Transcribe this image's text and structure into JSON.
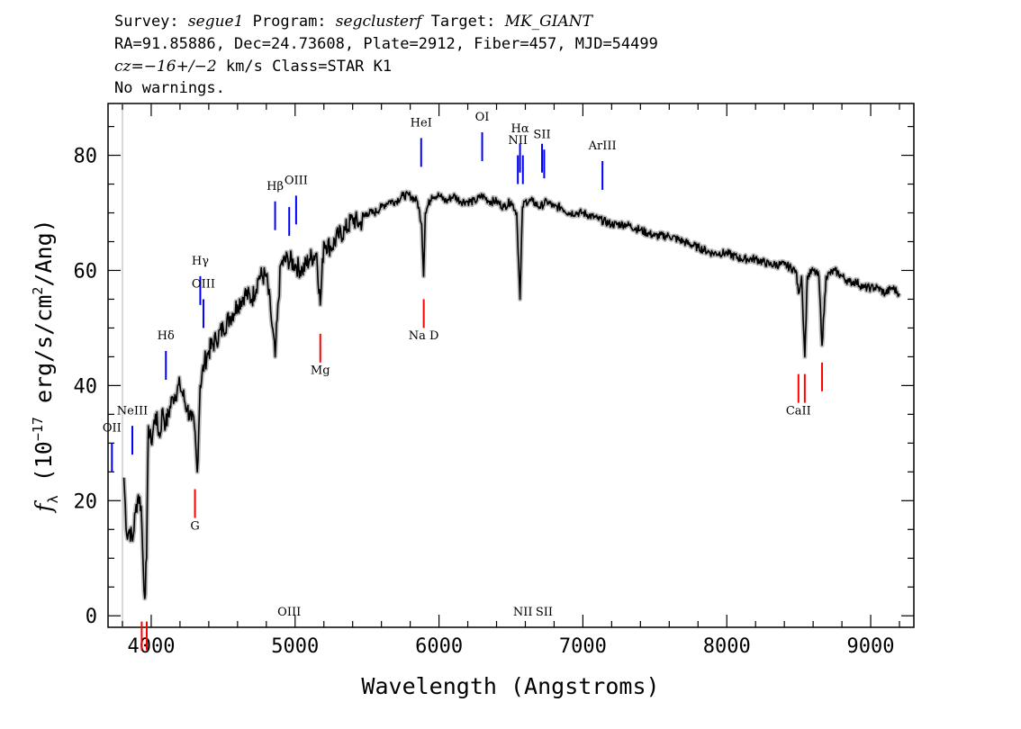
{
  "header": {
    "survey_label": "Survey:",
    "survey": "segue1",
    "program_label": "Program:",
    "program": "segclusterf",
    "target_label": "Target:",
    "target": "MK_GIANT",
    "line2": "RA=91.85886, Dec=24.73608, Plate=2912, Fiber=457, MJD=54499",
    "cz_label": "cz=",
    "cz_value": "−16+/−2",
    "cz_rest": " km/s Class=STAR K1",
    "line4": "No warnings."
  },
  "colors": {
    "emission": "#0000ff",
    "absorption": "#ff0000",
    "spectrum": "#000000",
    "error": "#bbbbbb"
  },
  "chart_data": {
    "type": "line",
    "xlabel": "Wavelength (Angstroms)",
    "ylabel_prefix": "f",
    "ylabel_sub": "λ",
    "ylabel_mid": " (10",
    "ylabel_exp1": "−17",
    "ylabel_mid2": " erg/s/cm",
    "ylabel_exp2": "2",
    "ylabel_end": "/Ang)",
    "xlim": [
      3700,
      9300
    ],
    "ylim": [
      -2,
      89
    ],
    "xticks": [
      4000,
      5000,
      6000,
      7000,
      8000,
      9000
    ],
    "yticks": [
      0,
      20,
      40,
      60,
      80
    ],
    "x_tick_labels": [
      "4000",
      "5000",
      "6000",
      "7000",
      "8000",
      "9000"
    ],
    "y_tick_labels": [
      "0",
      "20",
      "40",
      "60",
      "80"
    ],
    "series": [
      {
        "x": [
          3810,
          3830,
          3850,
          3870,
          3890,
          3910,
          3930,
          3945,
          3955,
          3968,
          3980,
          4000,
          4030,
          4060,
          4080,
          4100,
          4150,
          4200,
          4250,
          4280,
          4300,
          4320,
          4340,
          4370,
          4400,
          4450,
          4500,
          4550,
          4600,
          4650,
          4700,
          4750,
          4800,
          4830,
          4861,
          4900,
          4950,
          5000,
          5050,
          5100,
          5150,
          5175,
          5200,
          5250,
          5300,
          5350,
          5400,
          5450,
          5500,
          5550,
          5600,
          5650,
          5700,
          5750,
          5800,
          5850,
          5880,
          5893,
          5905,
          5950,
          6000,
          6050,
          6100,
          6150,
          6200,
          6250,
          6300,
          6350,
          6400,
          6450,
          6500,
          6540,
          6563,
          6580,
          6600,
          6650,
          6700,
          6750,
          6800,
          6850,
          6900,
          6950,
          7000,
          7100,
          7200,
          7300,
          7400,
          7500,
          7600,
          7700,
          7800,
          7900,
          8000,
          8100,
          8200,
          8300,
          8400,
          8480,
          8498,
          8520,
          8542,
          8560,
          8600,
          8640,
          8662,
          8690,
          8750,
          8800,
          8850,
          8900,
          8950,
          9000,
          9050,
          9100,
          9150,
          9200
        ],
        "y": [
          24,
          14,
          15,
          13,
          18,
          21,
          19,
          8,
          3,
          10,
          33,
          30,
          35,
          31,
          36,
          33,
          38,
          40,
          36,
          34,
          33,
          25,
          40,
          44,
          46,
          48,
          50,
          52,
          54,
          56,
          55,
          59,
          59,
          53,
          45,
          61,
          62,
          61,
          60,
          62,
          63,
          54,
          65,
          64,
          66,
          67,
          69,
          68,
          70,
          70,
          71,
          72,
          72,
          73,
          73,
          72,
          68,
          59,
          70,
          73,
          73,
          72,
          73,
          72,
          72,
          72,
          73,
          72,
          72,
          71,
          72,
          70,
          55,
          71,
          72,
          72,
          71,
          72,
          71,
          71,
          70,
          70,
          70,
          69,
          68,
          68,
          67,
          66,
          66,
          65,
          64,
          63,
          63,
          62,
          62,
          61,
          61,
          60,
          56,
          59,
          45,
          59,
          60,
          59,
          47,
          59,
          60,
          59,
          58,
          58,
          57,
          57,
          57,
          56,
          57,
          56
        ]
      }
    ],
    "emission_lines": [
      {
        "name": "OII",
        "x": 3727,
        "y_top": 30,
        "y_bottom": 25,
        "label_y": 32
      },
      {
        "name": "NeIII",
        "x": 3869,
        "y_top": 33,
        "y_bottom": 28,
        "label_y": 35
      },
      {
        "name": "Hδ",
        "x": 4102,
        "y_top": 46,
        "y_bottom": 41,
        "label_y": 48
      },
      {
        "name": "Hγ",
        "x": 4341,
        "y_top": 59,
        "y_bottom": 54,
        "label_y": 61
      },
      {
        "name": "OIII",
        "x": 4363,
        "y_top": 55,
        "y_bottom": 50,
        "label_y": 57
      },
      {
        "name": "Hβ",
        "x": 4861,
        "y_top": 72,
        "y_bottom": 67,
        "label_y": 74
      },
      {
        "name": "OIII",
        "x": 4959,
        "y_top": 71,
        "y_bottom": 66,
        "label_y": 0
      },
      {
        "name": "OIII",
        "x": 5007,
        "y_top": 73,
        "y_bottom": 68,
        "label_y": 75
      },
      {
        "name": "HeI",
        "x": 5876,
        "y_top": 83,
        "y_bottom": 78,
        "label_y": 85
      },
      {
        "name": "OI",
        "x": 6300,
        "y_top": 84,
        "y_bottom": 79,
        "label_y": 86
      },
      {
        "name": "NII",
        "x": 6548,
        "y_top": 80,
        "y_bottom": 75,
        "label_y": 82
      },
      {
        "name": "Hα",
        "x": 6563,
        "y_top": 82,
        "y_bottom": 77,
        "label_y": 84
      },
      {
        "name": "NII",
        "x": 6583,
        "y_top": 80,
        "y_bottom": 75,
        "label_y": 0
      },
      {
        "name": "SII",
        "x": 6716,
        "y_top": 82,
        "y_bottom": 77,
        "label_y": 83
      },
      {
        "name": "SII",
        "x": 6731,
        "y_top": 81,
        "y_bottom": 76,
        "label_y": 0
      },
      {
        "name": "ArIII",
        "x": 7136,
        "y_top": 79,
        "y_bottom": 74,
        "label_y": 81
      }
    ],
    "absorption_lines": [
      {
        "name": "",
        "x": 3934,
        "y_top": -1,
        "y_bottom": -6,
        "label_y": 0
      },
      {
        "name": "",
        "x": 3969,
        "y_top": -1,
        "y_bottom": -6,
        "label_y": 0
      },
      {
        "name": "G",
        "x": 4304,
        "y_top": 22,
        "y_bottom": 17,
        "label_y": 15
      },
      {
        "name": "Mg",
        "x": 5175,
        "y_top": 49,
        "y_bottom": 44,
        "label_y": 42
      },
      {
        "name": "Na D",
        "x": 5894,
        "y_top": 55,
        "y_bottom": 50,
        "label_y": 48
      },
      {
        "name": "CaII",
        "x": 8498,
        "y_top": 42,
        "y_bottom": 37,
        "label_y": 35
      },
      {
        "name": "",
        "x": 8542,
        "y_top": 42,
        "y_bottom": 37,
        "label_y": 0
      },
      {
        "name": "",
        "x": 8662,
        "y_top": 44,
        "y_bottom": 39,
        "label_y": 0
      }
    ]
  }
}
